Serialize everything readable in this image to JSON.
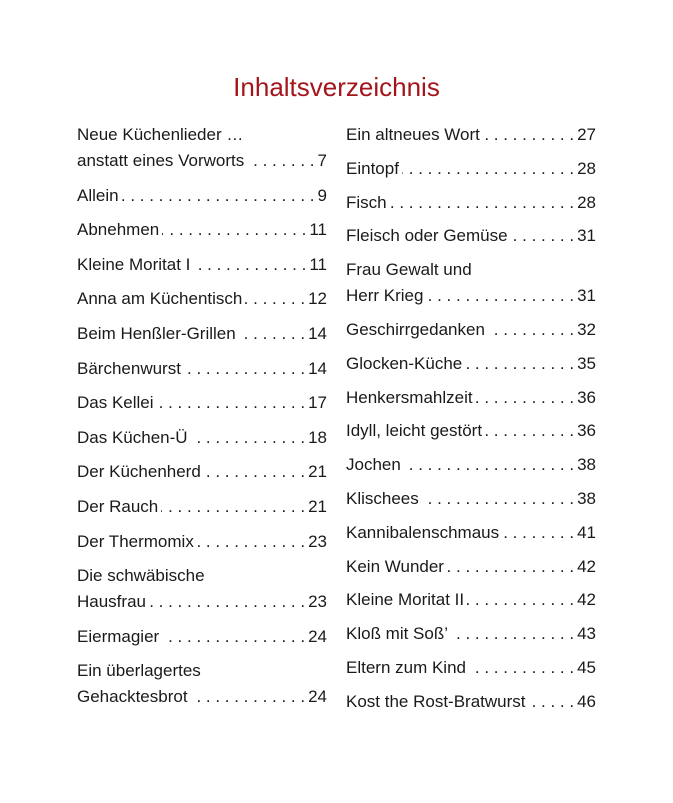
{
  "title": "Inhaltsverzeichnis",
  "colors": {
    "title": "#a3151b",
    "text": "#1a1a1a"
  },
  "left": [
    {
      "lines": [
        "Neue Küchenlieder …",
        "anstatt eines Vorworts"
      ],
      "page": "7"
    },
    {
      "lines": [
        "Allein"
      ],
      "page": "9"
    },
    {
      "lines": [
        "Abnehmen"
      ],
      "page": "11"
    },
    {
      "lines": [
        "Kleine Moritat I"
      ],
      "page": "11"
    },
    {
      "lines": [
        "Anna am Küchentisch"
      ],
      "page": "12"
    },
    {
      "lines": [
        "Beim Henßler-Grillen"
      ],
      "page": "14"
    },
    {
      "lines": [
        "Bärchenwurst"
      ],
      "page": "14"
    },
    {
      "lines": [
        "Das Kellei"
      ],
      "page": "17"
    },
    {
      "lines": [
        "Das Küchen-Ü"
      ],
      "page": "18"
    },
    {
      "lines": [
        "Der Küchenherd"
      ],
      "page": "21"
    },
    {
      "lines": [
        "Der Rauch"
      ],
      "page": "21"
    },
    {
      "lines": [
        "Der Thermomix"
      ],
      "page": "23"
    },
    {
      "lines": [
        "Die schwäbische",
        "Hausfrau"
      ],
      "page": "23"
    },
    {
      "lines": [
        "Eiermagier"
      ],
      "page": "24"
    },
    {
      "lines": [
        "Ein überlagertes",
        "Gehacktesbrot"
      ],
      "page": "24"
    }
  ],
  "right": [
    {
      "lines": [
        "Ein altneues Wort"
      ],
      "page": "27"
    },
    {
      "lines": [
        "Eintopf"
      ],
      "page": "28"
    },
    {
      "lines": [
        "Fisch"
      ],
      "page": "28"
    },
    {
      "lines": [
        "Fleisch oder Gemüse"
      ],
      "page": "31"
    },
    {
      "lines": [
        "Frau Gewalt und",
        "Herr Krieg"
      ],
      "page": "31"
    },
    {
      "lines": [
        "Geschirrgedanken"
      ],
      "page": "32"
    },
    {
      "lines": [
        "Glocken-Küche"
      ],
      "page": "35"
    },
    {
      "lines": [
        "Henkersmahlzeit"
      ],
      "page": "36"
    },
    {
      "lines": [
        "Idyll, leicht gestört"
      ],
      "page": "36"
    },
    {
      "lines": [
        "Jochen"
      ],
      "page": "38"
    },
    {
      "lines": [
        "Klischees"
      ],
      "page": "38"
    },
    {
      "lines": [
        "Kannibalenschmaus"
      ],
      "page": "41"
    },
    {
      "lines": [
        "Kein Wunder"
      ],
      "page": "42"
    },
    {
      "lines": [
        "Kleine Moritat II"
      ],
      "page": "42"
    },
    {
      "lines": [
        "Kloß mit Soß’"
      ],
      "page": "43"
    },
    {
      "lines": [
        "Eltern zum Kind"
      ],
      "page": "45"
    },
    {
      "lines": [
        "Kost the Rost-Bratwurst"
      ],
      "page": "46"
    }
  ]
}
